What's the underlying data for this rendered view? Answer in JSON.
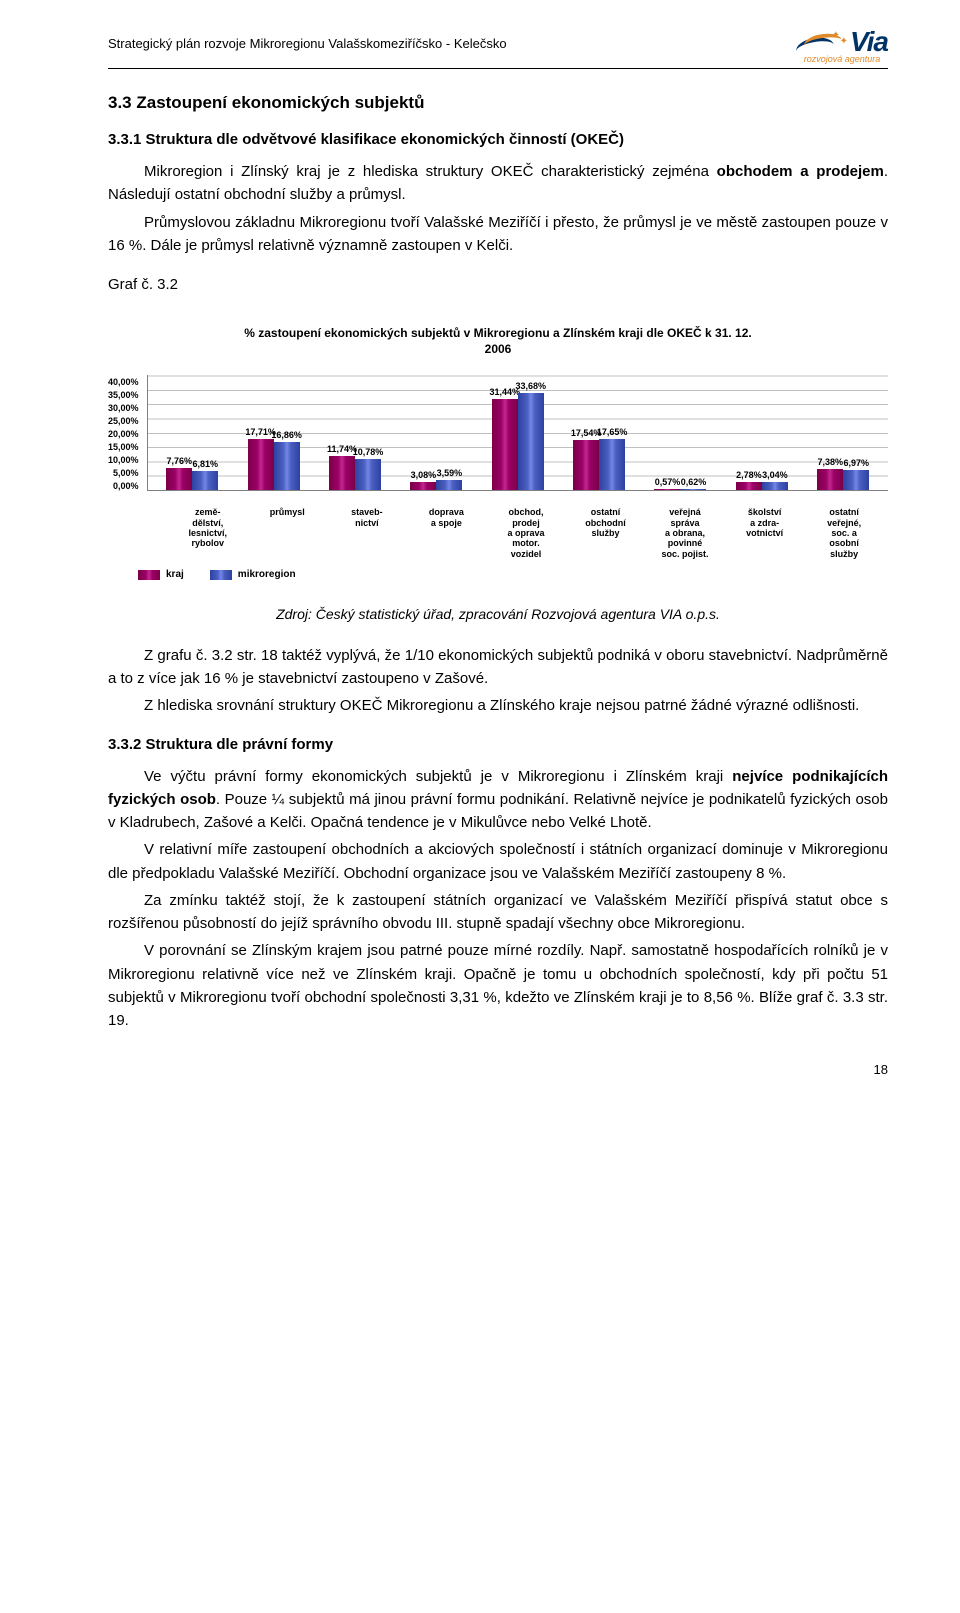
{
  "header": {
    "title": "Strategický plán  rozvoje Mikroregionu Valašskomeziříčsko - Kelečsko",
    "logo_text": "Via",
    "logo_sub": "rozvojová agentura"
  },
  "section_3_3": {
    "heading": "3.3   Zastoupení ekonomických subjektů",
    "sub_3_3_1": "3.3.1   Struktura dle odvětvové klasifikace ekonomických činností (OKEČ)",
    "para1_a": "Mikroregion i Zlínský kraj je z hlediska struktury OKEČ charakteristický zejména ",
    "para1_b": "obchodem a prodejem",
    "para1_c": ". Následují ostatní obchodní služby a průmysl.",
    "para2": "Průmyslovou základnu Mikroregionu tvoří Valašské Meziříčí i přesto, že průmysl je ve městě zastoupen pouze v 16 %. Dále je průmysl relativně významně zastoupen v Kelči.",
    "graf_label": "Graf č. 3.2"
  },
  "chart": {
    "title_line1": "% zastoupení ekonomických subjektů v Mikroregionu a Zlínském kraji dle OKEČ k 31. 12.",
    "title_line2": "2006",
    "ymax": 40,
    "ystep": 5,
    "yticks": [
      "0,00%",
      "5,00%",
      "10,00%",
      "15,00%",
      "20,00%",
      "25,00%",
      "30,00%",
      "35,00%",
      "40,00%"
    ],
    "series": [
      {
        "name": "kraj",
        "color": "#9a0066"
      },
      {
        "name": "mikroregion",
        "color": "#4a5fbf"
      }
    ],
    "categories": [
      {
        "label": "země-\ndělství,\nlesnictví,\nrybolov",
        "vals": [
          7.76,
          6.81
        ],
        "disp": [
          "7,76%",
          "6,81%"
        ]
      },
      {
        "label": "průmysl",
        "vals": [
          17.71,
          16.86
        ],
        "disp": [
          "17,71%",
          "16,86%"
        ]
      },
      {
        "label": "staveb-\nnictví",
        "vals": [
          11.74,
          10.78
        ],
        "disp": [
          "11,74%",
          "10,78%"
        ]
      },
      {
        "label": "doprava\na spoje",
        "vals": [
          3.08,
          3.59
        ],
        "disp": [
          "3,08%",
          "3,59%"
        ]
      },
      {
        "label": "obchod,\nprodej\na oprava\nmotor.\nvozidel",
        "vals": [
          31.44,
          33.68
        ],
        "disp": [
          "31,44%",
          "33,68%"
        ]
      },
      {
        "label": "ostatní\nobchodní\nslužby",
        "vals": [
          17.54,
          17.65
        ],
        "disp": [
          "17,54%",
          "17,65%"
        ]
      },
      {
        "label": "veřejná\nspráva\na obrana,\npovinné\nsoc. pojist.",
        "vals": [
          0.57,
          0.62
        ],
        "disp": [
          "0,57%",
          "0,62%"
        ]
      },
      {
        "label": "školství\na zdra-\nvotnictví",
        "vals": [
          2.78,
          3.04
        ],
        "disp": [
          "2,78%",
          "3,04%"
        ]
      },
      {
        "label": "ostatní\nveřejné,\nsoc. a\nosobní\nslužby",
        "vals": [
          7.38,
          6.97
        ],
        "disp": [
          "7,38%",
          "6,97%"
        ]
      }
    ],
    "legend_kraj": "kraj",
    "legend_mikro": "mikroregion"
  },
  "source": "Zdroj: Český statistický úřad, zpracování Rozvojová agentura VIA o.p.s.",
  "post_chart": {
    "p1": "Z grafu č. 3.2 str. 18 taktéž vyplývá, že 1/10 ekonomických subjektů podniká v oboru stavebnictví. Nadprůměrně a to z více jak 16 % je stavebnictví zastoupeno v Zašové.",
    "p2": "Z hlediska srovnání struktury OKEČ Mikroregionu a Zlínského kraje nejsou patrné žádné výrazné odlišnosti."
  },
  "section_3_3_2": {
    "heading": "3.3.2   Struktura dle právní formy",
    "p1_a": "Ve výčtu právní formy ekonomických subjektů je v Mikroregionu i Zlínském kraji ",
    "p1_b": "nejvíce podnikajících fyzických osob",
    "p1_c": ". Pouze ¼ subjektů má jinou právní formu podnikání. Relativně nejvíce je podnikatelů fyzických osob v Kladrubech, Zašové a Kelči. Opačná tendence je v Mikulůvce nebo Velké Lhotě.",
    "p2": "V relativní míře zastoupení obchodních a akciových společností i státních organizací dominuje v Mikroregionu dle předpokladu Valašské Meziříčí. Obchodní organizace jsou ve Valašském Meziříčí zastoupeny 8 %.",
    "p3": "Za zmínku taktéž stojí, že k zastoupení státních organizací ve Valašském Meziříčí přispívá statut obce s rozšířenou působností do jejíž správního obvodu III. stupně spadají všechny obce Mikroregionu.",
    "p4": "V porovnání se Zlínským krajem jsou patrné pouze mírné rozdíly. Např. samostatně hospodařících rolníků je v Mikroregionu relativně více než ve Zlínském kraji. Opačně je tomu u obchodních společností, kdy při počtu 51 subjektů v Mikroregionu tvoří obchodní společnosti 3,31 %, kdežto ve Zlínském kraji je to 8,56 %. Blíže graf č. 3.3 str. 19."
  },
  "page_number": "18"
}
